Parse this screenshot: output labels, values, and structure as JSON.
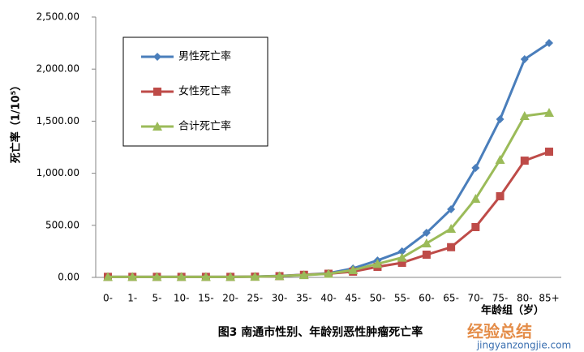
{
  "chart_data": {
    "type": "line",
    "title": "图3 南通市性别、年龄别恶性肿瘤死亡率",
    "y_label": "死亡率（1/10⁵）",
    "x_label": "年龄组（岁）",
    "categories": [
      "0-",
      "1-",
      "5-",
      "10-",
      "15-",
      "20-",
      "25-",
      "30-",
      "35-",
      "40-",
      "45-",
      "50-",
      "55-",
      "60-",
      "65-",
      "70-",
      "75-",
      "80-",
      "85+"
    ],
    "series": [
      {
        "name": "男性死亡率",
        "color": "#4a7ebb",
        "marker": "diamond",
        "values": [
          5,
          5,
          5,
          5,
          5,
          5,
          8,
          15,
          25,
          40,
          86,
          163,
          250,
          428,
          654,
          1051,
          1519,
          2095,
          2251
        ]
      },
      {
        "name": "女性死亡率",
        "color": "#be4b48",
        "marker": "square",
        "values": [
          5,
          5,
          5,
          5,
          5,
          5,
          7,
          12,
          25,
          35,
          55,
          101,
          140,
          218,
          290,
          483,
          779,
          1121,
          1207
        ]
      },
      {
        "name": "合计死亡率",
        "color": "#9bbb59",
        "marker": "triangle",
        "values": [
          5,
          5,
          5,
          5,
          5,
          5,
          7,
          13,
          22,
          35,
          70,
          130,
          190,
          327,
          467,
          755,
          1129,
          1550,
          1581
        ]
      }
    ],
    "ylim": [
      0,
      2500
    ],
    "yticks": [
      {
        "value": 0,
        "label": "0.00"
      },
      {
        "value": 500,
        "label": "500.00"
      },
      {
        "value": 1000,
        "label": "1,000.00"
      },
      {
        "value": 1500,
        "label": "1,500.00"
      },
      {
        "value": 2000,
        "label": "2,000.00"
      },
      {
        "value": 2500,
        "label": "2,500.00"
      }
    ],
    "legend": "upper left"
  },
  "watermark": {
    "brand": "经验总结",
    "url": "jingyanzongjie.com"
  }
}
